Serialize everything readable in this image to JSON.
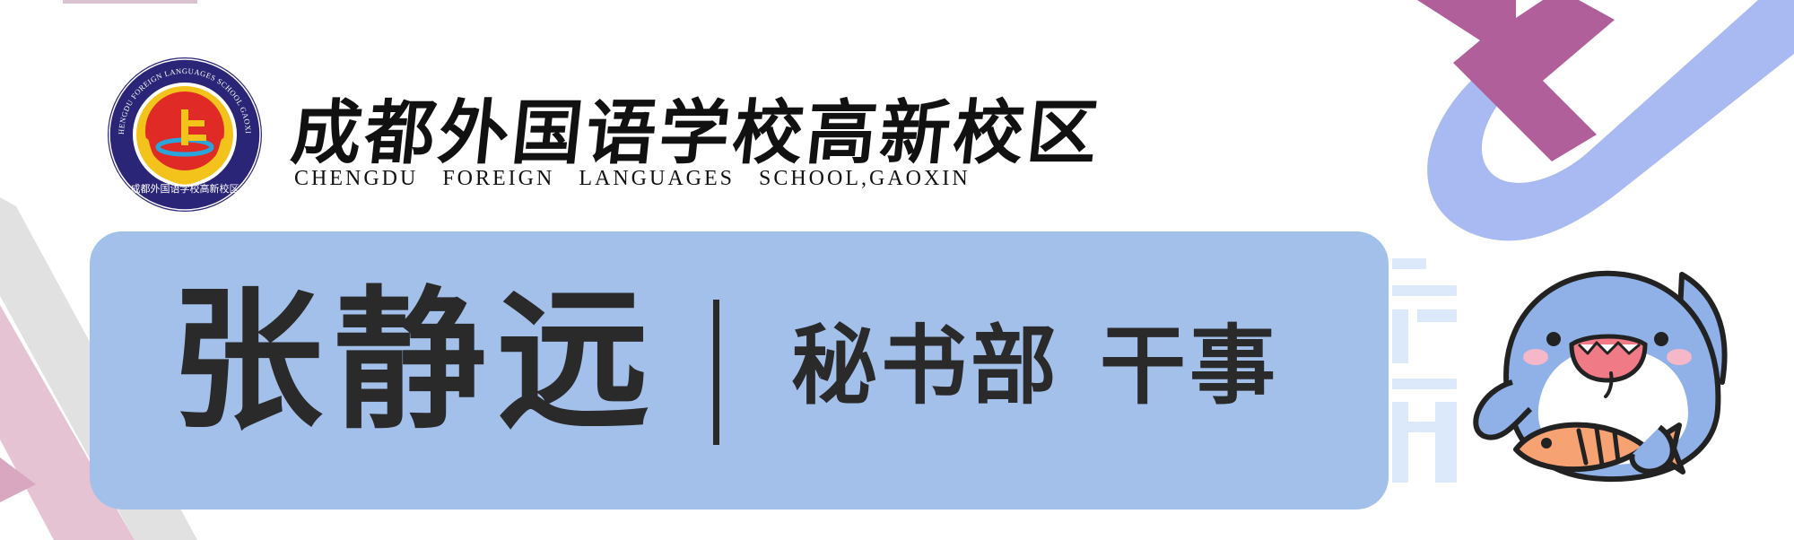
{
  "school": {
    "name_cn": "成都外国语学校高新校区",
    "name_en": "CHENGDU FOREIGN LANGUAGES SCHOOL,GAOXIN",
    "seal_ring_text": "CHENGDU FOREIGN LANGUAGES SCHOOL GAOXIN",
    "seal_bottom_text": "成都外国语学校高新校区"
  },
  "member": {
    "name": "张静远",
    "department": "秘书部",
    "position": "干事"
  },
  "colors": {
    "banner": "#a3c0ea",
    "text": "#2a2a2a",
    "accent_purple": "#b0609a",
    "accent_blue": "#a8b8f0",
    "accent_pink": "#e8bcd0",
    "seal_navy": "#2a2577",
    "seal_red": "#e02a25",
    "seal_gold": "#f3c21b"
  },
  "icons": {
    "seal": "school-seal-icon",
    "mascot": "shark-mascot-icon"
  }
}
